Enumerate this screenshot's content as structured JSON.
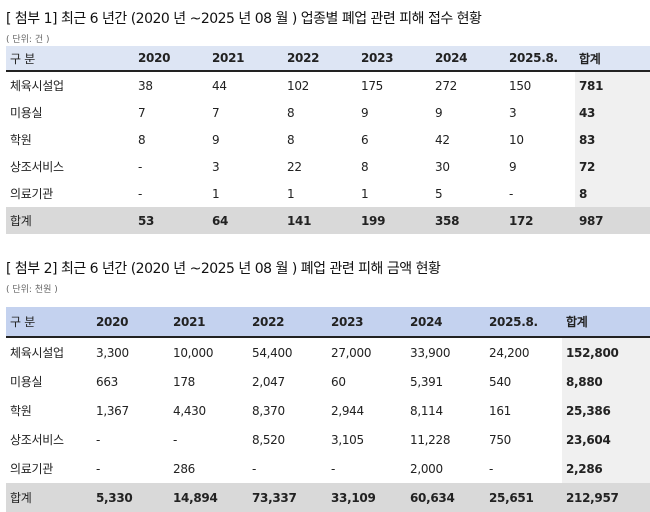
{
  "table1": {
    "title": "[ 첨부 1] 최근 6 년간 (2020 년 ~2025 년 08 월 ) 업종별 폐업 관련 피해 접수 현황",
    "unit": "( 단위: 건 )",
    "headers": [
      "구 분",
      "2020",
      "2021",
      "2022",
      "2023",
      "2024",
      "2025.8.",
      "합계"
    ],
    "rows": [
      [
        "체육시설업",
        "38",
        "44",
        "102",
        "175",
        "272",
        "150",
        "781"
      ],
      [
        "미용실",
        "7",
        "7",
        "8",
        "9",
        "9",
        "3",
        "43"
      ],
      [
        "학원",
        "8",
        "9",
        "8",
        "6",
        "42",
        "10",
        "83"
      ],
      [
        "상조서비스",
        "-",
        "3",
        "22",
        "8",
        "30",
        "9",
        "72"
      ],
      [
        "의료기관",
        "-",
        "1",
        "1",
        "1",
        "5",
        "-",
        "8"
      ]
    ],
    "total": [
      "합계",
      "53",
      "64",
      "141",
      "199",
      "358",
      "172",
      "987"
    ]
  },
  "table2": {
    "title": "[ 첨부 2] 최근 6 년간 (2020 년 ~2025 년 08 월 ) 폐업 관련 피해 금액 현황",
    "unit": "( 단위: 천원 )",
    "headers": [
      "구 분",
      "2020",
      "2021",
      "2022",
      "2023",
      "2024",
      "2025.8.",
      "합계"
    ],
    "rows": [
      [
        "체육시설업",
        "3,300",
        "10,000",
        "54,400",
        "27,000",
        "33,900",
        "24,200",
        "152,800"
      ],
      [
        "미용실",
        "663",
        "178",
        "2,047",
        "60",
        "5,391",
        "540",
        "8,880"
      ],
      [
        "학원",
        "1,367",
        "4,430",
        "8,370",
        "2,944",
        "8,114",
        "161",
        "25,386"
      ],
      [
        "상조서비스",
        "-",
        "-",
        "8,520",
        "3,105",
        "11,228",
        "750",
        "23,604"
      ],
      [
        "의료기관",
        "-",
        "286",
        "-",
        "-",
        "2,000",
        "-",
        "2,286"
      ]
    ],
    "total": [
      "합계",
      "5,330",
      "14,894",
      "73,337",
      "33,109",
      "60,634",
      "25,651",
      "212,957"
    ]
  }
}
